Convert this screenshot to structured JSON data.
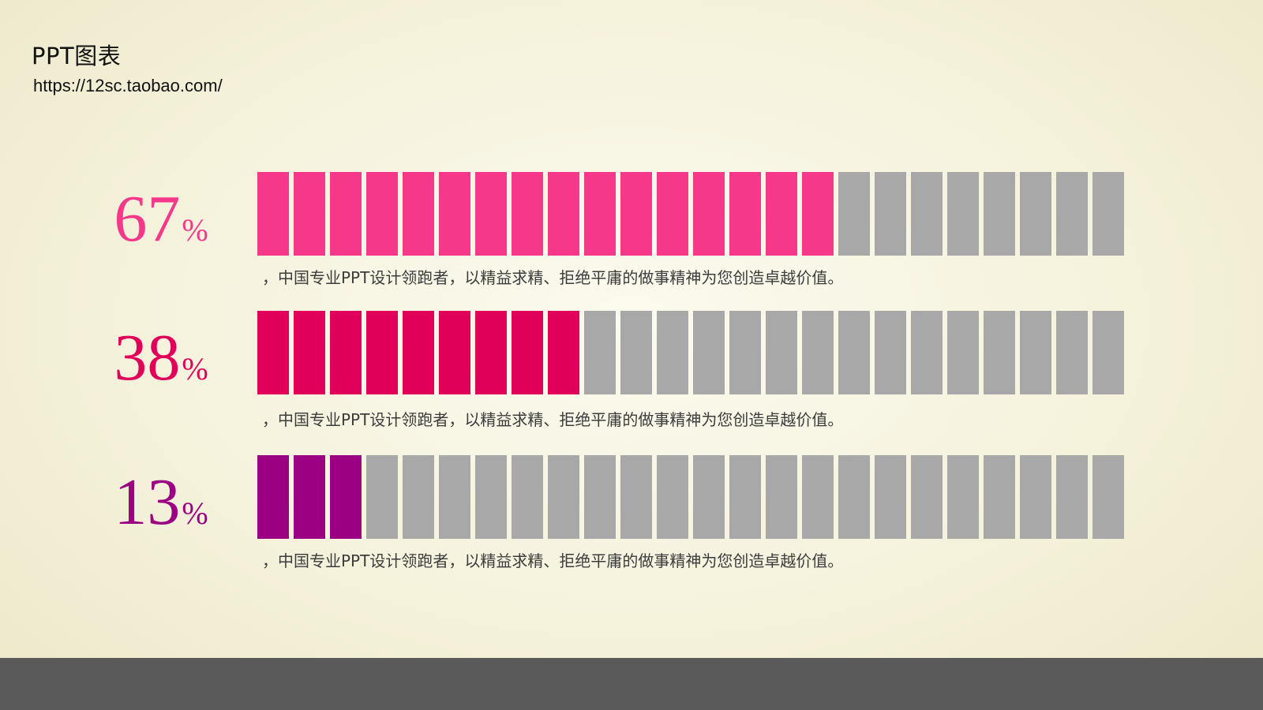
{
  "header": {
    "title": "PPT图表",
    "url": "https://12sc.taobao.com/"
  },
  "chart_data": {
    "type": "bar",
    "segments_total": 24,
    "empty_color": "#a8a8a8",
    "series": [
      {
        "percent_label": "67",
        "value": 67,
        "color": "#f5388a",
        "caption": "，中国专业PPT设计领跑者，以精益求精、拒绝平庸的做事精神为您创造卓越价值。"
      },
      {
        "percent_label": "38",
        "value": 38,
        "color": "#e0005a",
        "caption": "，中国专业PPT设计领跑者，以精益求精、拒绝平庸的做事精神为您创造卓越价值。"
      },
      {
        "percent_label": "13",
        "value": 13,
        "color": "#9b0082",
        "caption": "，中国专业PPT设计领跑者，以精益求精、拒绝平庸的做事精神为您创造卓越价值。"
      }
    ],
    "percent_symbol": "%"
  }
}
